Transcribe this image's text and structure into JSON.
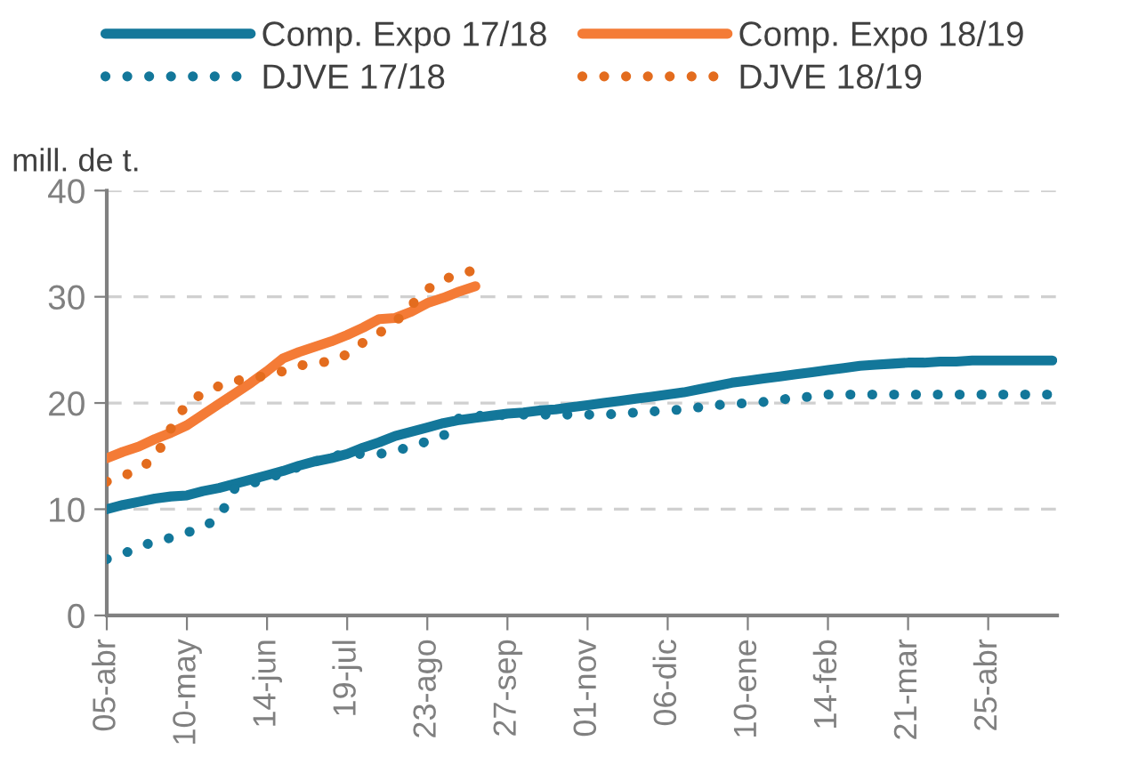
{
  "chart_data": {
    "type": "line",
    "ylabel": "mill. de t.",
    "categories": [
      "05-abr",
      null,
      null,
      null,
      null,
      "10-may",
      null,
      null,
      null,
      null,
      "14-jun",
      null,
      null,
      null,
      null,
      "19-jul",
      null,
      null,
      null,
      null,
      "23-ago",
      null,
      null,
      null,
      null,
      "27-sep",
      null,
      null,
      null,
      null,
      "01-nov",
      null,
      null,
      null,
      null,
      "06-dic",
      null,
      null,
      null,
      null,
      "10-ene",
      null,
      null,
      null,
      null,
      "14-feb",
      null,
      null,
      null,
      null,
      "21-mar",
      null,
      null,
      null,
      null,
      "25-abr",
      null,
      null,
      null,
      null
    ],
    "ylim": [
      0,
      40
    ],
    "yticks": [
      0,
      10,
      20,
      30,
      40
    ],
    "grid": "y",
    "legend": "top",
    "series": [
      {
        "name": "Comp. Expo 17/18",
        "color": "#13779a",
        "line_style": "solid",
        "values": [
          10.0,
          10.4,
          10.7,
          11.0,
          11.2,
          11.3,
          11.7,
          12.0,
          12.4,
          12.8,
          13.2,
          13.6,
          14.1,
          14.5,
          14.8,
          15.2,
          15.8,
          16.3,
          16.9,
          17.3,
          17.7,
          18.1,
          18.4,
          18.6,
          18.8,
          19.0,
          19.1,
          19.3,
          19.4,
          19.6,
          19.8,
          20.0,
          20.2,
          20.4,
          20.6,
          20.8,
          21.0,
          21.3,
          21.6,
          21.9,
          22.1,
          22.3,
          22.5,
          22.7,
          22.9,
          23.1,
          23.3,
          23.5,
          23.6,
          23.7,
          23.8,
          23.8,
          23.9,
          23.9,
          24.0,
          24.0,
          24.0,
          24.0,
          24.0,
          24.0
        ]
      },
      {
        "name": "Comp. Expo 18/19",
        "color": "#f47b36",
        "line_style": "solid",
        "values": [
          14.8,
          15.4,
          15.9,
          16.6,
          17.2,
          17.9,
          18.9,
          19.9,
          20.9,
          21.9,
          23.0,
          24.2,
          24.8,
          25.3,
          25.8,
          26.4,
          27.1,
          27.9,
          28.0,
          28.6,
          29.4,
          29.9,
          30.5,
          31.0,
          null,
          null,
          null,
          null,
          null,
          null,
          null,
          null,
          null,
          null,
          null,
          null,
          null,
          null,
          null,
          null,
          null,
          null,
          null,
          null,
          null,
          null,
          null,
          null,
          null,
          null,
          null,
          null,
          null,
          null,
          null,
          null,
          null,
          null,
          null,
          null
        ]
      },
      {
        "name": "DJVE 17/18",
        "color": "#13779a",
        "line_style": "dotted",
        "values": [
          5.3,
          5.8,
          6.4,
          7.0,
          7.3,
          7.8,
          8.3,
          9.2,
          12.0,
          12.4,
          12.9,
          13.4,
          14.0,
          14.5,
          15.0,
          15.2,
          15.2,
          15.2,
          15.5,
          15.9,
          16.4,
          16.9,
          18.6,
          18.8,
          18.8,
          18.9,
          18.9,
          18.9,
          18.9,
          18.9,
          18.9,
          18.9,
          19.0,
          19.1,
          19.2,
          19.3,
          19.4,
          19.6,
          19.8,
          19.9,
          20.0,
          20.1,
          20.3,
          20.5,
          20.6,
          20.8,
          20.8,
          20.8,
          20.8,
          20.8,
          20.8,
          20.8,
          20.8,
          20.8,
          20.8,
          20.8,
          20.8,
          20.8,
          20.8,
          20.8
        ]
      },
      {
        "name": "DJVE 18/19",
        "color": "#e36c1e",
        "line_style": "dotted",
        "values": [
          12.6,
          13.1,
          13.8,
          14.8,
          17.6,
          20.0,
          20.9,
          21.6,
          22.1,
          22.3,
          22.6,
          23.0,
          23.5,
          23.8,
          23.9,
          24.6,
          25.7,
          26.6,
          27.6,
          29.2,
          30.7,
          31.6,
          32.2,
          32.5,
          null,
          null,
          null,
          null,
          null,
          null,
          null,
          null,
          null,
          null,
          null,
          null,
          null,
          null,
          null,
          null,
          null,
          null,
          null,
          null,
          null,
          null,
          null,
          null,
          null,
          null,
          null,
          null,
          null,
          null,
          null,
          null,
          null,
          null,
          null,
          null
        ]
      }
    ]
  }
}
